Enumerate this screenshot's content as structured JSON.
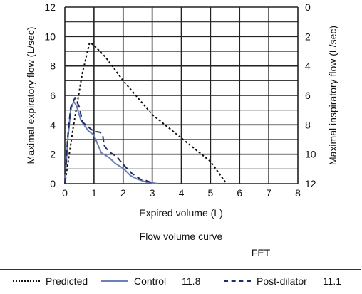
{
  "chart_data": {
    "type": "line",
    "title": "Flow volume curve",
    "annotation": "FET",
    "xlabel": "Expired volume (L)",
    "ylabel_left": "Maximal expiratory flow (L/sec)",
    "ylabel_right": "Maximal inspiratory flow (L/sec)",
    "xlim": [
      0,
      8
    ],
    "ylim_left": [
      0,
      12
    ],
    "ylim_right": [
      12,
      0
    ],
    "x_ticks": [
      "0",
      "1",
      "2",
      "3",
      "4",
      "5",
      "6",
      "7",
      "8"
    ],
    "y_ticks_left": [
      "0",
      "2",
      "4",
      "6",
      "8",
      "10",
      "12"
    ],
    "y_ticks_right": [
      "12",
      "10",
      "8",
      "6",
      "4",
      "2",
      "0"
    ],
    "grid": true,
    "legend_position": "bottom",
    "series": [
      {
        "name": "Predicted",
        "fet": "",
        "style": "dotted",
        "color": "#111111",
        "points": [
          [
            0.0,
            0.0
          ],
          [
            0.3,
            4.0
          ],
          [
            0.6,
            7.5
          ],
          [
            0.85,
            9.6
          ],
          [
            1.0,
            9.4
          ],
          [
            1.4,
            8.6
          ],
          [
            2.0,
            7.0
          ],
          [
            3.0,
            4.7
          ],
          [
            4.0,
            3.1
          ],
          [
            5.0,
            1.5
          ],
          [
            5.55,
            0.0
          ]
        ]
      },
      {
        "name": "Control",
        "fet": "11.8",
        "style": "solid",
        "color": "#6b7fb8",
        "points": [
          [
            0.0,
            0.0
          ],
          [
            0.1,
            3.0
          ],
          [
            0.2,
            5.0
          ],
          [
            0.3,
            5.6
          ],
          [
            0.4,
            5.3
          ],
          [
            0.55,
            4.3
          ],
          [
            0.8,
            3.6
          ],
          [
            1.0,
            3.3
          ],
          [
            1.1,
            2.8
          ],
          [
            1.25,
            2.1
          ],
          [
            1.5,
            1.8
          ],
          [
            1.75,
            1.35
          ],
          [
            2.0,
            1.05
          ],
          [
            2.25,
            0.55
          ],
          [
            2.5,
            0.3
          ],
          [
            2.8,
            0.1
          ],
          [
            3.1,
            0.03
          ],
          [
            3.2,
            0.0
          ]
        ]
      },
      {
        "name": "Post-dilator",
        "fet": "11.1",
        "style": "dashed",
        "color": "#1f2d63",
        "points": [
          [
            0.0,
            0.0
          ],
          [
            0.1,
            3.2
          ],
          [
            0.2,
            5.2
          ],
          [
            0.35,
            5.85
          ],
          [
            0.5,
            5.2
          ],
          [
            0.6,
            4.2
          ],
          [
            0.8,
            3.85
          ],
          [
            1.0,
            3.55
          ],
          [
            1.2,
            3.5
          ],
          [
            1.3,
            3.3
          ],
          [
            1.35,
            2.6
          ],
          [
            1.5,
            2.2
          ],
          [
            1.8,
            1.8
          ],
          [
            2.0,
            1.3
          ],
          [
            2.3,
            0.7
          ],
          [
            2.6,
            0.3
          ],
          [
            2.8,
            0.2
          ],
          [
            3.0,
            0.07
          ],
          [
            3.1,
            0.0
          ]
        ]
      }
    ]
  }
}
